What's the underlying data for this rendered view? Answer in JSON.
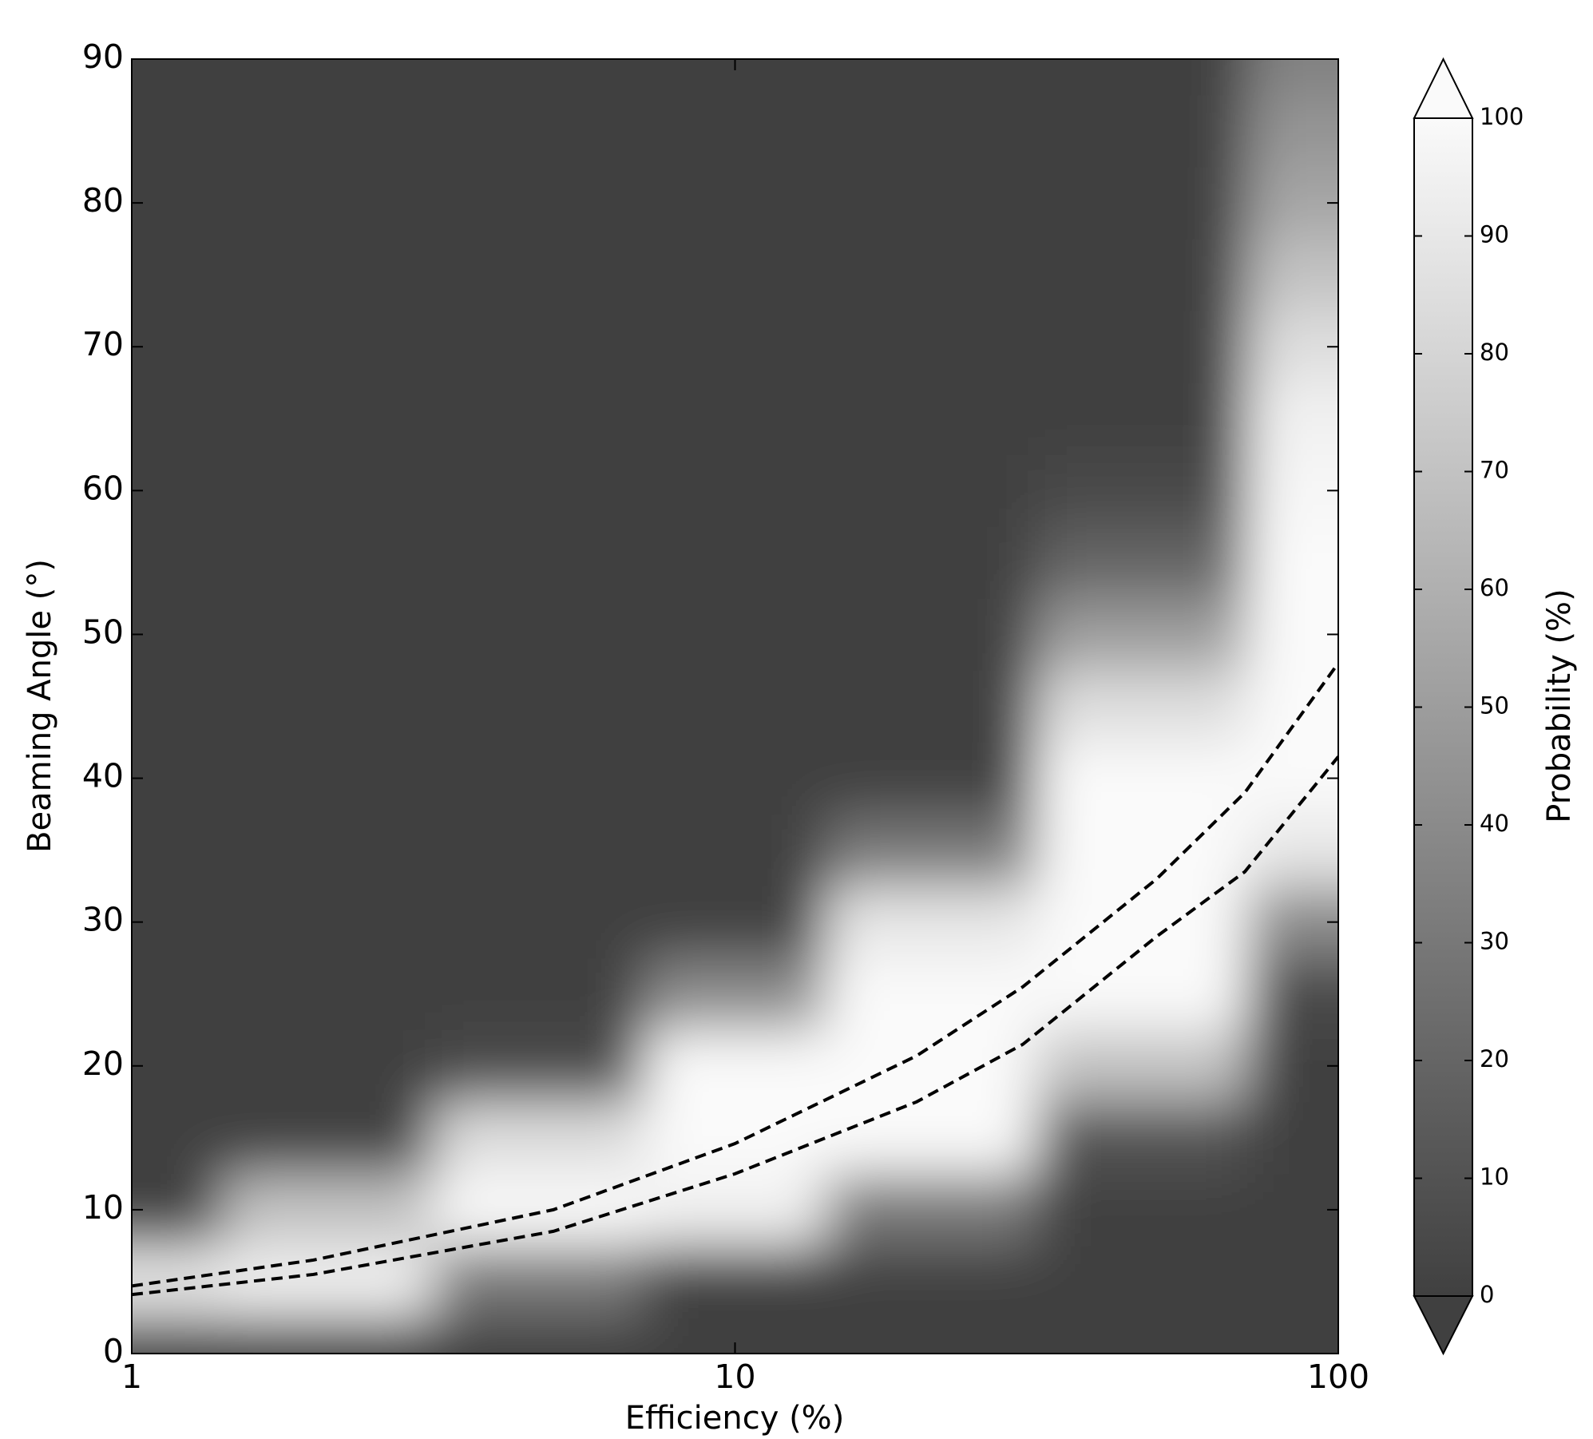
{
  "chart_data": {
    "type": "heatmap",
    "xlabel": "Efficiency (%)",
    "ylabel": "Beaming Angle (°)",
    "colorbar_label": "Probability (%)",
    "xscale": "log",
    "xlim": [
      1,
      100
    ],
    "xticks": [
      1,
      10,
      100
    ],
    "ylim": [
      0,
      90
    ],
    "yticks": [
      0,
      10,
      20,
      30,
      40,
      50,
      60,
      70,
      80,
      90
    ],
    "clim": [
      0,
      100
    ],
    "cticks": [
      0,
      10,
      20,
      30,
      40,
      50,
      60,
      70,
      80,
      90,
      100
    ],
    "cmap": [
      "#404040",
      "#fafafa"
    ],
    "grid_x": [
      1,
      2,
      5,
      10,
      20,
      50,
      100
    ],
    "grid_y": [
      0,
      5,
      10,
      15,
      20,
      25,
      30,
      35,
      40,
      45,
      50,
      55,
      60,
      65,
      70,
      75,
      80,
      85,
      90
    ],
    "z": [
      [
        0,
        0,
        0,
        0,
        0,
        0,
        0
      ],
      [
        90,
        95,
        30,
        0,
        0,
        0,
        0
      ],
      [
        0,
        70,
        100,
        95,
        30,
        0,
        0
      ],
      [
        0,
        0,
        85,
        100,
        100,
        10,
        0
      ],
      [
        0,
        0,
        5,
        100,
        100,
        70,
        0
      ],
      [
        0,
        0,
        0,
        40,
        100,
        100,
        5
      ],
      [
        0,
        0,
        0,
        0,
        90,
        100,
        40
      ],
      [
        0,
        0,
        0,
        0,
        30,
        100,
        90
      ],
      [
        0,
        0,
        0,
        0,
        0,
        100,
        100
      ],
      [
        0,
        0,
        0,
        0,
        0,
        85,
        100
      ],
      [
        0,
        0,
        0,
        0,
        0,
        50,
        100
      ],
      [
        0,
        0,
        0,
        0,
        0,
        20,
        100
      ],
      [
        0,
        0,
        0,
        0,
        0,
        5,
        98
      ],
      [
        0,
        0,
        0,
        0,
        0,
        0,
        95
      ],
      [
        0,
        0,
        0,
        0,
        0,
        0,
        85
      ],
      [
        0,
        0,
        0,
        0,
        0,
        0,
        70
      ],
      [
        0,
        0,
        0,
        0,
        0,
        0,
        55
      ],
      [
        0,
        0,
        0,
        0,
        0,
        0,
        45
      ],
      [
        0,
        0,
        0,
        0,
        0,
        0,
        35
      ]
    ],
    "contour_color": "#000000",
    "contours": [
      {
        "x": [
          1,
          2,
          5,
          10,
          20,
          30,
          50,
          70,
          100
        ],
        "y": [
          4.7,
          6.5,
          10,
          14.6,
          20.7,
          25.5,
          33,
          39,
          48
        ]
      },
      {
        "x": [
          1,
          2,
          5,
          10,
          20,
          30,
          50,
          70,
          100
        ],
        "y": [
          4.1,
          5.5,
          8.5,
          12.5,
          17.5,
          21.5,
          29,
          33.5,
          41.5
        ]
      }
    ]
  }
}
